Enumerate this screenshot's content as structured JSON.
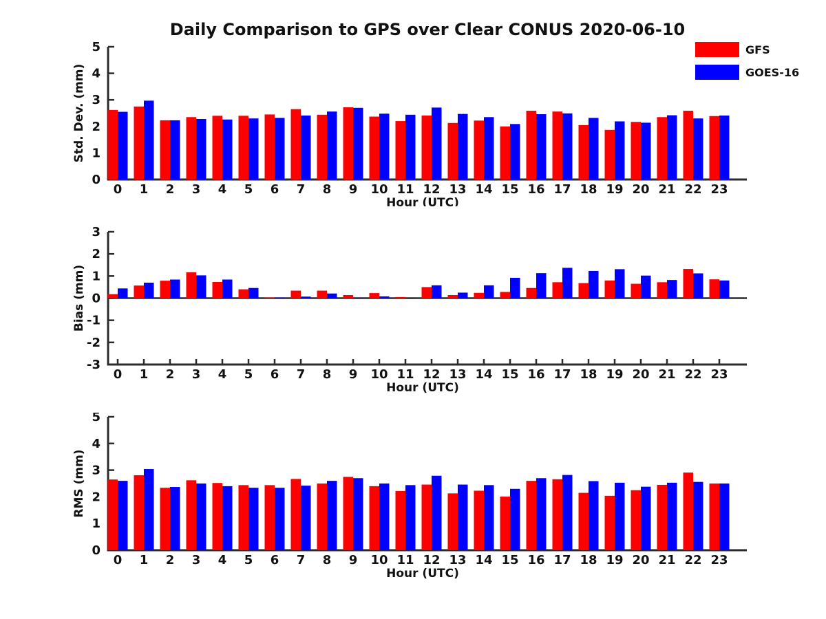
{
  "figure": {
    "title": "Daily Comparison to GPS over Clear CONUS 2020-06-10"
  },
  "legend": {
    "position": "top-right",
    "items": [
      {
        "label": "GFS",
        "color": "#ff0000"
      },
      {
        "label": "GOES-16",
        "color": "#0000ff"
      }
    ]
  },
  "colors": {
    "gfs": "#ff0000",
    "goes16": "#0000ff",
    "axis": "#2b2b2b",
    "text": "#111111",
    "background": "#ffffff"
  },
  "chart_data": [
    {
      "type": "bar",
      "title": "",
      "xlabel": "Hour (UTC)",
      "ylabel": "Std. Dev. (mm)",
      "ylim": [
        0,
        5
      ],
      "yticks": [
        0,
        1,
        2,
        3,
        4,
        5
      ],
      "grid": false,
      "legend_position": "top-right of figure",
      "categories": [
        "0",
        "1",
        "2",
        "3",
        "4",
        "5",
        "6",
        "7",
        "8",
        "9",
        "10",
        "11",
        "12",
        "13",
        "14",
        "15",
        "16",
        "17",
        "18",
        "19",
        "20",
        "21",
        "22",
        "23"
      ],
      "series": [
        {
          "name": "GFS",
          "color": "#ff0000",
          "values": [
            2.62,
            2.75,
            2.23,
            2.35,
            2.4,
            2.4,
            2.45,
            2.65,
            2.44,
            2.72,
            2.37,
            2.2,
            2.41,
            2.13,
            2.22,
            2.0,
            2.59,
            2.56,
            2.05,
            1.87,
            2.17,
            2.35,
            2.59,
            2.39
          ]
        },
        {
          "name": "GOES-16",
          "color": "#0000ff",
          "values": [
            2.55,
            2.97,
            2.23,
            2.28,
            2.26,
            2.3,
            2.32,
            2.41,
            2.56,
            2.7,
            2.48,
            2.44,
            2.71,
            2.47,
            2.35,
            2.09,
            2.46,
            2.49,
            2.32,
            2.19,
            2.14,
            2.42,
            2.3,
            2.41
          ]
        }
      ]
    },
    {
      "type": "bar",
      "title": "",
      "xlabel": "Hour (UTC)",
      "ylabel": "Bias (mm)",
      "ylim": [
        -3,
        3
      ],
      "yticks": [
        -3,
        -2,
        -1,
        0,
        1,
        2,
        3
      ],
      "grid": false,
      "categories": [
        "0",
        "1",
        "2",
        "3",
        "4",
        "5",
        "6",
        "7",
        "8",
        "9",
        "10",
        "11",
        "12",
        "13",
        "14",
        "15",
        "16",
        "17",
        "18",
        "19",
        "20",
        "21",
        "22",
        "23"
      ],
      "series": [
        {
          "name": "GFS",
          "color": "#ff0000",
          "values": [
            0.18,
            0.57,
            0.79,
            1.17,
            0.73,
            0.4,
            0.03,
            0.34,
            0.34,
            0.14,
            0.23,
            0.05,
            0.5,
            0.14,
            0.24,
            0.28,
            0.46,
            0.72,
            0.68,
            0.8,
            0.65,
            0.72,
            1.32,
            0.85
          ]
        },
        {
          "name": "GOES-16",
          "color": "#0000ff",
          "values": [
            0.44,
            0.7,
            0.84,
            1.03,
            0.84,
            0.46,
            0.03,
            0.07,
            0.21,
            0.02,
            0.08,
            0.01,
            0.58,
            0.25,
            0.58,
            0.92,
            1.13,
            1.37,
            1.23,
            1.31,
            1.02,
            0.82,
            1.12,
            0.8
          ]
        }
      ]
    },
    {
      "type": "bar",
      "title": "",
      "xlabel": "Hour (UTC)",
      "ylabel": "RMS (mm)",
      "ylim": [
        0,
        5
      ],
      "yticks": [
        0,
        1,
        2,
        3,
        4,
        5
      ],
      "grid": false,
      "categories": [
        "0",
        "1",
        "2",
        "3",
        "4",
        "5",
        "6",
        "7",
        "8",
        "9",
        "10",
        "11",
        "12",
        "13",
        "14",
        "15",
        "16",
        "17",
        "18",
        "19",
        "20",
        "21",
        "22",
        "23"
      ],
      "series": [
        {
          "name": "GFS",
          "color": "#ff0000",
          "values": [
            2.65,
            2.81,
            2.34,
            2.62,
            2.52,
            2.44,
            2.44,
            2.67,
            2.5,
            2.75,
            2.4,
            2.22,
            2.46,
            2.13,
            2.23,
            2.01,
            2.6,
            2.66,
            2.15,
            2.04,
            2.25,
            2.45,
            2.91,
            2.5
          ]
        },
        {
          "name": "GOES-16",
          "color": "#0000ff",
          "values": [
            2.6,
            3.04,
            2.37,
            2.5,
            2.4,
            2.34,
            2.34,
            2.42,
            2.6,
            2.7,
            2.5,
            2.44,
            2.79,
            2.46,
            2.44,
            2.3,
            2.7,
            2.82,
            2.59,
            2.53,
            2.38,
            2.53,
            2.56,
            2.5
          ]
        }
      ]
    }
  ]
}
